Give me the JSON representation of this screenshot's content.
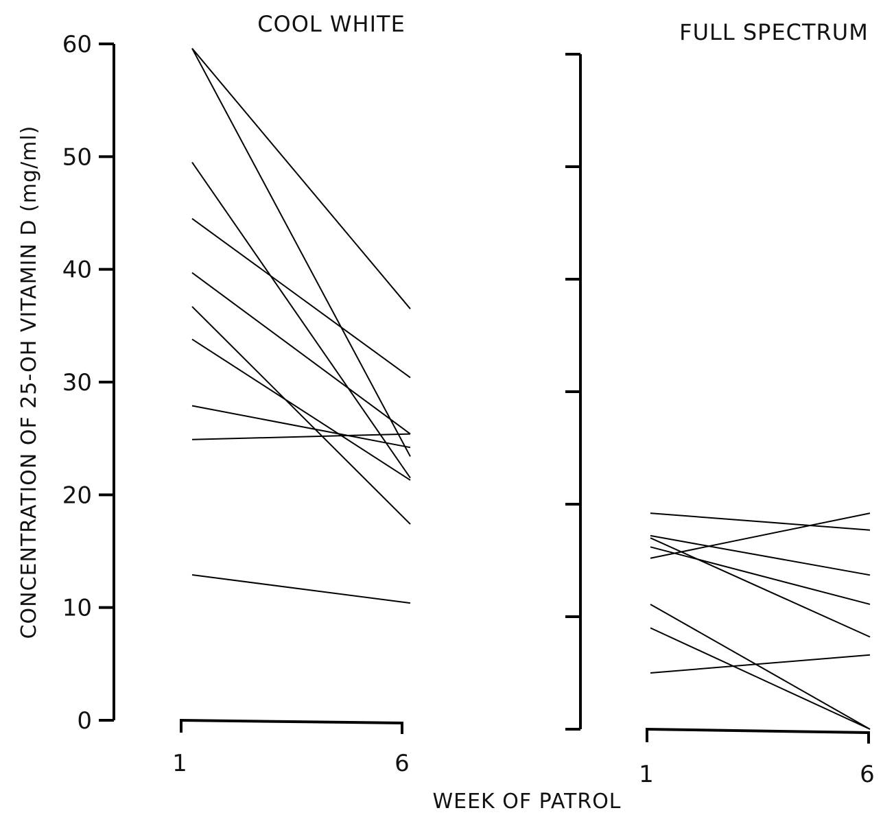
{
  "chart_data": {
    "type": "line",
    "ylabel": "CONCENTRATION OF 25-OH VITAMIN D (mg/ml)",
    "xlabel": "WEEK OF PATROL",
    "ylim": [
      0,
      60
    ],
    "yticks": [
      "0",
      "10",
      "20",
      "30",
      "40",
      "50",
      "60"
    ],
    "grid": false,
    "panels": [
      {
        "title": "COOL WHITE",
        "x": [
          "1",
          "6"
        ],
        "series": [
          {
            "values": [
              59.6,
              36.5
            ]
          },
          {
            "values": [
              59.6,
              23.4
            ]
          },
          {
            "values": [
              49.5,
              21.5
            ]
          },
          {
            "values": [
              44.5,
              30.4
            ]
          },
          {
            "values": [
              39.7,
              25.4
            ]
          },
          {
            "values": [
              36.7,
              17.4
            ]
          },
          {
            "values": [
              33.8,
              21.3
            ]
          },
          {
            "values": [
              27.9,
              24.2
            ]
          },
          {
            "values": [
              24.9,
              25.4
            ]
          },
          {
            "values": [
              12.9,
              10.4
            ]
          }
        ]
      },
      {
        "title": "FULL SPECTRUM",
        "x": [
          "1",
          "6"
        ],
        "series": [
          {
            "values": [
              19.2,
              17.7
            ]
          },
          {
            "values": [
              15.2,
              19.2
            ]
          },
          {
            "values": [
              17.2,
              13.7
            ]
          },
          {
            "values": [
              16.2,
              11.1
            ]
          },
          {
            "values": [
              17.0,
              8.2
            ]
          },
          {
            "values": [
              11.1,
              0.0
            ]
          },
          {
            "values": [
              9.0,
              0.0
            ]
          },
          {
            "values": [
              5.0,
              6.6
            ]
          }
        ]
      }
    ]
  }
}
